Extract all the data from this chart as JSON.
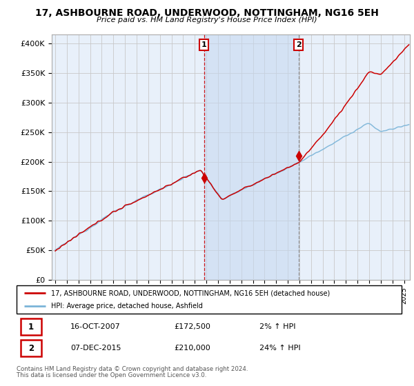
{
  "title": "17, ASHBOURNE ROAD, UNDERWOOD, NOTTINGHAM, NG16 5EH",
  "subtitle": "Price paid vs. HM Land Registry's House Price Index (HPI)",
  "ylabel_ticks": [
    "£0",
    "£50K",
    "£100K",
    "£150K",
    "£200K",
    "£250K",
    "£300K",
    "£350K",
    "£400K"
  ],
  "ylim": [
    0,
    415000
  ],
  "xlim_start": 1994.7,
  "xlim_end": 2025.5,
  "sale1_date": 2007.79,
  "sale1_price": 172500,
  "sale1_text": "16-OCT-2007",
  "sale1_pct": "2%",
  "sale2_date": 2015.92,
  "sale2_text": "07-DEC-2015",
  "sale2_price": 210000,
  "sale2_pct": "24%",
  "legend_line1": "17, ASHBOURNE ROAD, UNDERWOOD, NOTTINGHAM, NG16 5EH (detached house)",
  "legend_line2": "HPI: Average price, detached house, Ashfield",
  "footnote1": "Contains HM Land Registry data © Crown copyright and database right 2024.",
  "footnote2": "This data is licensed under the Open Government Licence v3.0.",
  "hpi_color": "#7ab4d8",
  "price_color": "#cc0000",
  "bg_color": "#e8f0fa",
  "shade_color": "#c5d8f0",
  "grid_color": "#c8c8c8"
}
